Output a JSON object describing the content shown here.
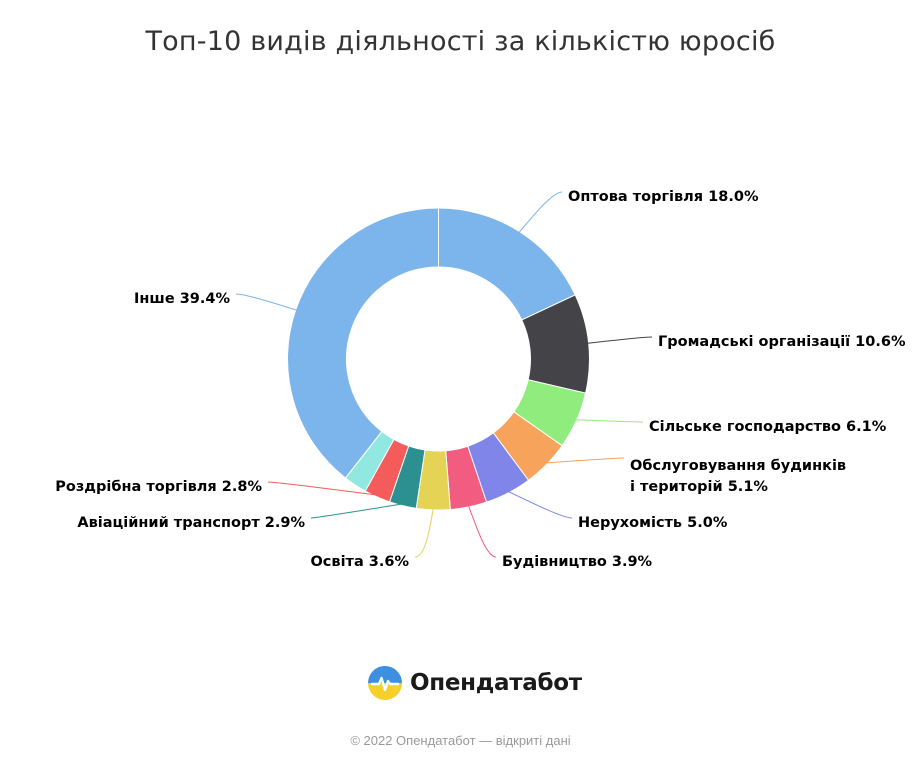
{
  "chart_data": {
    "type": "pie",
    "title": "Топ-10 видів діяльності за кількістю юросіб",
    "donut": true,
    "slices": [
      {
        "label": "Оптова торгівля",
        "value": 18.0,
        "label_text": "Оптова торгівля 18.0%",
        "color": "#7cb5ec"
      },
      {
        "label": "Громадські організації",
        "value": 10.6,
        "label_text": "Громадські організації 10.6%",
        "color": "#434348"
      },
      {
        "label": "Сільське господарство",
        "value": 6.1,
        "label_text": "Сільське господарство 6.1%",
        "color": "#90ed7d"
      },
      {
        "label": "Обслуговування будинків і територій",
        "value": 5.1,
        "label_lines": [
          "Обслуговування будинків",
          "і територій 5.1%"
        ],
        "color": "#f7a35c"
      },
      {
        "label": "Нерухомість",
        "value": 5.0,
        "label_text": "Нерухомість 5.0%",
        "color": "#8085e9"
      },
      {
        "label": "Будівництво",
        "value": 3.9,
        "label_text": "Будівництво 3.9%",
        "color": "#f15c80"
      },
      {
        "label": "Освіта",
        "value": 3.6,
        "label_text": "Освіта 3.6%",
        "color": "#e4d354"
      },
      {
        "label": "Авіаційний транспорт",
        "value": 2.9,
        "label_text": "Авіаційний транспорт 2.9%",
        "color": "#2b908f"
      },
      {
        "label": "Роздрібна торгівля",
        "value": 2.8,
        "label_text": "Роздрібна торгівля 2.8%",
        "color": "#f45b5b"
      },
      {
        "label": "",
        "value": 2.5,
        "color": "#91e8e1"
      },
      {
        "label": "Інше",
        "value": 39.4,
        "label_text": "Інше 39.4%",
        "color": "#7cb5ec"
      }
    ]
  },
  "brand": {
    "name": "Опендатабот"
  },
  "credits": "© 2022 Опендатабот — відкриті дані"
}
